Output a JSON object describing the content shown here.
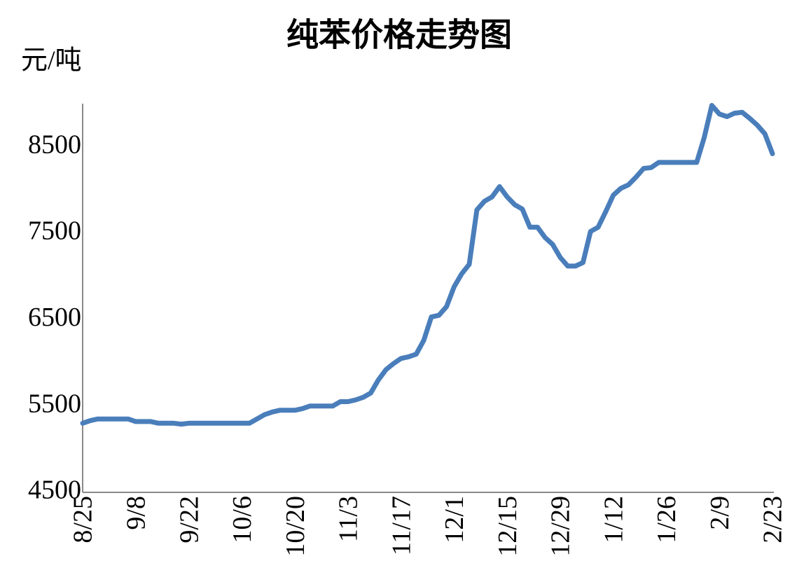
{
  "chart_data": {
    "type": "line",
    "title": "纯苯价格走势图",
    "y_label": "元/吨",
    "categories": [
      "8/25",
      null,
      null,
      null,
      null,
      null,
      null,
      "9/8",
      null,
      null,
      null,
      null,
      null,
      null,
      "9/22",
      null,
      null,
      null,
      null,
      null,
      null,
      "10/6",
      null,
      null,
      null,
      null,
      null,
      null,
      "10/20",
      null,
      null,
      null,
      null,
      null,
      null,
      "11/3",
      null,
      null,
      null,
      null,
      null,
      null,
      "11/17",
      null,
      null,
      null,
      null,
      null,
      null,
      "12/1",
      null,
      null,
      null,
      null,
      null,
      null,
      "12/15",
      null,
      null,
      null,
      null,
      null,
      null,
      "12/29",
      null,
      null,
      null,
      null,
      null,
      null,
      "1/12",
      null,
      null,
      null,
      null,
      null,
      null,
      "1/26",
      null,
      null,
      null,
      null,
      null,
      null,
      "2/9",
      null,
      null,
      null,
      null,
      null,
      null,
      "2/23"
    ],
    "series": [
      {
        "color": "#4a7ebb",
        "values": [
          5300,
          5330,
          5350,
          5350,
          5350,
          5350,
          5350,
          5320,
          5320,
          5320,
          5300,
          5300,
          5300,
          5290,
          5300,
          5300,
          5300,
          5300,
          5300,
          5300,
          5300,
          5300,
          5300,
          5350,
          5400,
          5430,
          5450,
          5450,
          5450,
          5470,
          5500,
          5500,
          5500,
          5500,
          5550,
          5550,
          5570,
          5600,
          5650,
          5800,
          5920,
          5990,
          6050,
          6070,
          6100,
          6260,
          6530,
          6550,
          6650,
          6880,
          7030,
          7140,
          7770,
          7870,
          7920,
          8040,
          7920,
          7830,
          7780,
          7570,
          7570,
          7450,
          7370,
          7220,
          7120,
          7120,
          7160,
          7520,
          7570,
          7750,
          7940,
          8020,
          8060,
          8150,
          8250,
          8260,
          8320,
          8320,
          8320,
          8320,
          8320,
          8320,
          8610,
          8980,
          8880,
          8850,
          8890,
          8900,
          8830,
          8750,
          8650,
          8420
        ]
      }
    ],
    "ylim": [
      4500,
      9000
    ],
    "yticks": [
      4500,
      5500,
      6500,
      7500,
      8500
    ],
    "grid": false
  }
}
